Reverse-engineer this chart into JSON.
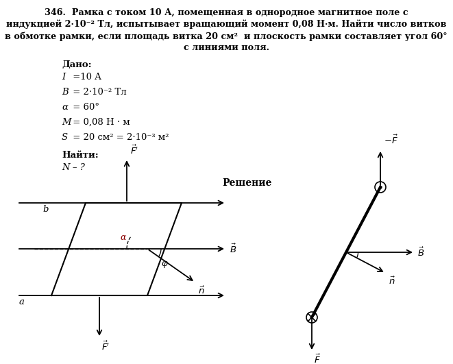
{
  "bg_color": "#ffffff",
  "title_bold": "346.",
  "title_rest": " Рамка с током 10 А, помещенная в однородное магнитное поле с индукцией 2·10⁻² Тл, испытывает вращающий момент 0,08 Н·м. Найти число витков в обмотке рамки, если площадь витка 20 см²  и плоскость рамки составляет угол 60° с линиями поля.",
  "dado_label": "Дано:",
  "given": [
    [
      "I",
      " =10 A"
    ],
    [
      "B",
      " = 2·10⁻² Тл"
    ],
    [
      "α",
      " = 60°"
    ],
    [
      "M",
      " = 0,08 Н·м"
    ],
    [
      "S",
      " = 20 см² = 2·10⁻³ м²"
    ]
  ],
  "najti_label": "Найти:",
  "najti_val": "N – ?",
  "reshenie": "Решение"
}
